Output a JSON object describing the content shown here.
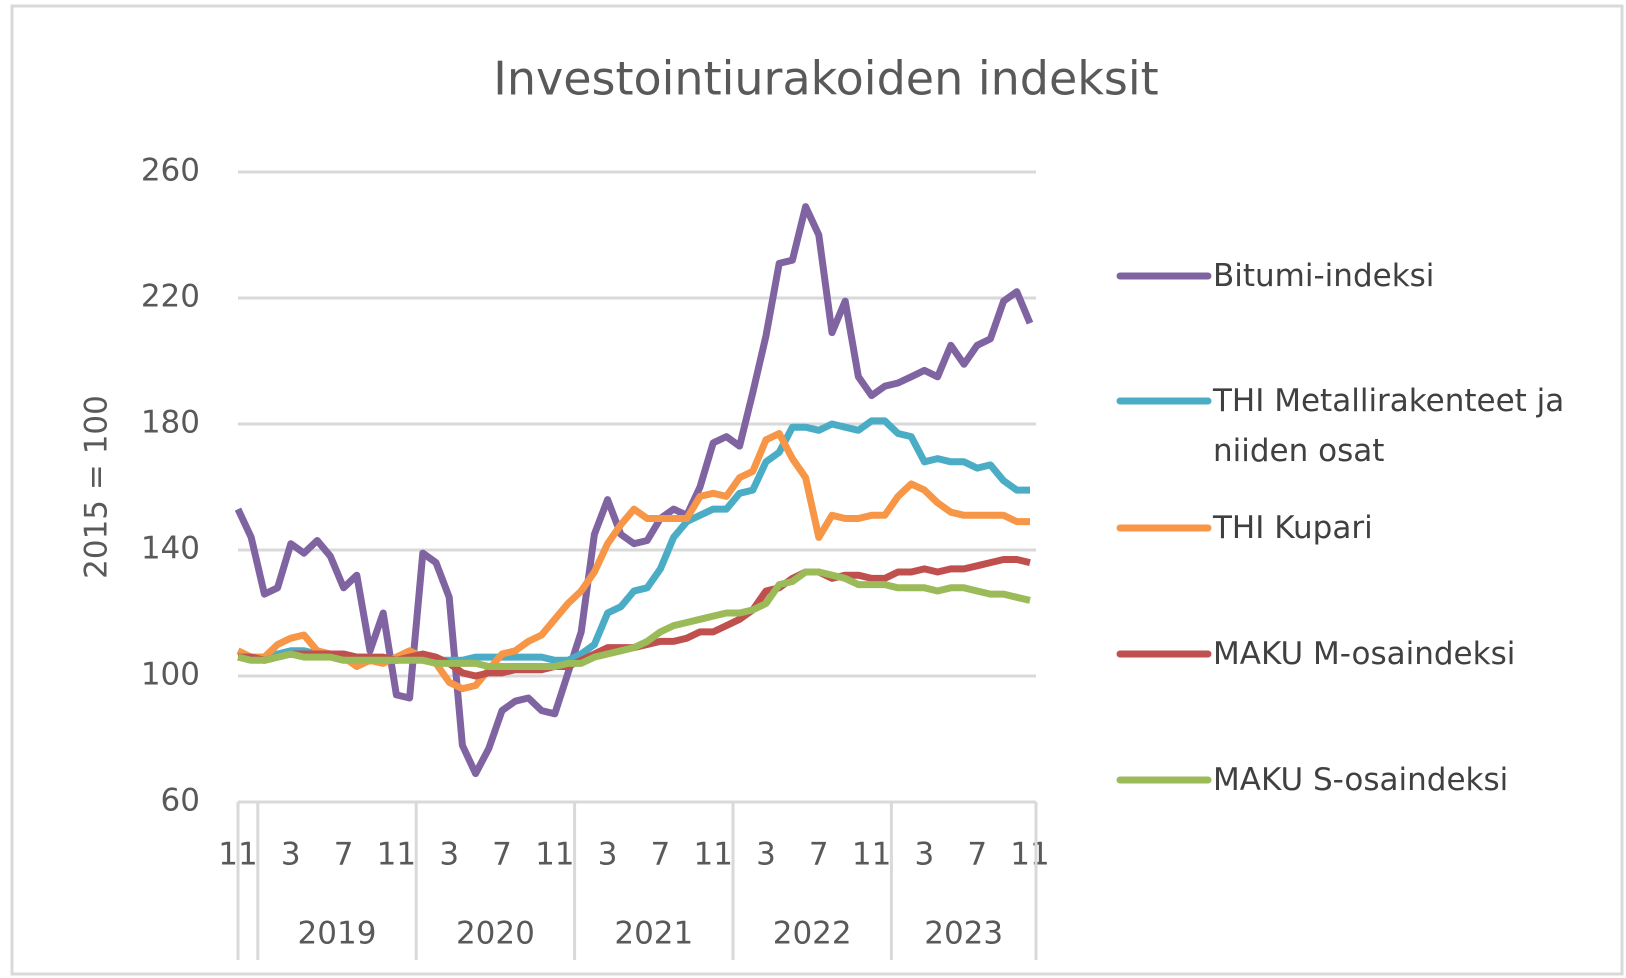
{
  "chart_data": {
    "type": "line",
    "title": "Investointiurakoiden indeksit",
    "y_label": "2015 = 100",
    "categories": [
      "11",
      null,
      null,
      null,
      "3",
      null,
      null,
      null,
      "7",
      null,
      null,
      null,
      "11",
      null,
      null,
      null,
      "3",
      null,
      null,
      null,
      "7",
      null,
      null,
      null,
      "11",
      null,
      null,
      null,
      "3",
      null,
      null,
      null,
      "7",
      null,
      null,
      null,
      "11",
      null,
      null,
      null,
      "3",
      null,
      null,
      null,
      "7",
      null,
      null,
      null,
      "11",
      null,
      null,
      null,
      "3",
      null,
      null,
      null,
      "7",
      null,
      null,
      null,
      "11"
    ],
    "year_groups": [
      {
        "label": "2019",
        "first": 2,
        "last": 13
      },
      {
        "label": "2020",
        "first": 14,
        "last": 25
      },
      {
        "label": "2021",
        "first": 26,
        "last": 37
      },
      {
        "label": "2022",
        "first": 38,
        "last": 49
      },
      {
        "label": "2023",
        "first": 50,
        "last": 60
      }
    ],
    "ylim": [
      60,
      260
    ],
    "yticks": [
      60,
      100,
      140,
      180,
      220,
      260
    ],
    "grid": true,
    "legend": "right",
    "series": [
      {
        "name": "Bitumi-indeksi",
        "color": "#8064a2",
        "values": [
          153,
          144,
          126,
          128,
          142,
          139,
          143,
          138,
          128,
          132,
          108,
          120,
          94,
          93,
          139,
          136,
          125,
          78,
          69,
          77,
          89,
          92,
          93,
          89,
          88,
          101,
          114,
          145,
          156,
          145,
          142,
          143,
          150,
          153,
          151,
          160,
          174,
          176,
          173,
          190,
          208,
          231,
          232,
          249,
          240,
          209,
          219,
          195,
          189,
          192,
          193,
          195,
          197,
          195,
          205,
          199,
          205,
          207,
          219,
          222,
          212
        ]
      },
      {
        "name": "THI Metallirakenteet ja niiden osat",
        "color": "#4bacc6",
        "values": [
          106,
          106,
          106,
          107,
          108,
          108,
          107,
          107,
          107,
          106,
          106,
          105,
          105,
          106,
          106,
          105,
          105,
          105,
          106,
          106,
          106,
          106,
          106,
          106,
          105,
          105,
          107,
          110,
          120,
          122,
          127,
          128,
          134,
          144,
          149,
          151,
          153,
          153,
          158,
          159,
          168,
          171,
          179,
          179,
          178,
          180,
          179,
          178,
          181,
          181,
          177,
          176,
          168,
          169,
          168,
          168,
          166,
          167,
          162,
          159,
          159
        ]
      },
      {
        "name": "THI Kupari",
        "color": "#f79646",
        "values": [
          108,
          106,
          106,
          110,
          112,
          113,
          108,
          107,
          106,
          103,
          105,
          104,
          106,
          108,
          106,
          104,
          98,
          96,
          97,
          102,
          107,
          108,
          111,
          113,
          118,
          123,
          127,
          133,
          142,
          148,
          153,
          150,
          150,
          150,
          150,
          157,
          158,
          157,
          163,
          165,
          175,
          177,
          169,
          163,
          144,
          151,
          150,
          150,
          151,
          151,
          157,
          161,
          159,
          155,
          152,
          151,
          151,
          151,
          151,
          149,
          149
        ]
      },
      {
        "name": "MAKU M-osaindeksi",
        "color": "#c0504d",
        "values": [
          106,
          106,
          105,
          106,
          107,
          107,
          107,
          107,
          107,
          106,
          106,
          106,
          105,
          106,
          107,
          106,
          104,
          101,
          100,
          101,
          101,
          102,
          102,
          102,
          103,
          103,
          105,
          107,
          109,
          109,
          109,
          110,
          111,
          111,
          112,
          114,
          114,
          116,
          118,
          121,
          127,
          128,
          131,
          133,
          133,
          131,
          132,
          132,
          131,
          131,
          133,
          133,
          134,
          133,
          134,
          134,
          135,
          136,
          137,
          137,
          136
        ]
      },
      {
        "name": "MAKU S-osaindeksi",
        "color": "#9bbb59",
        "values": [
          106,
          105,
          105,
          106,
          107,
          106,
          106,
          106,
          105,
          105,
          105,
          105,
          105,
          105,
          105,
          104,
          104,
          104,
          104,
          103,
          103,
          103,
          103,
          103,
          103,
          104,
          104,
          106,
          107,
          108,
          109,
          111,
          114,
          116,
          117,
          118,
          119,
          120,
          120,
          121,
          123,
          129,
          130,
          133,
          133,
          132,
          131,
          129,
          129,
          129,
          128,
          128,
          128,
          127,
          128,
          128,
          127,
          126,
          126,
          125,
          124
        ]
      }
    ]
  }
}
